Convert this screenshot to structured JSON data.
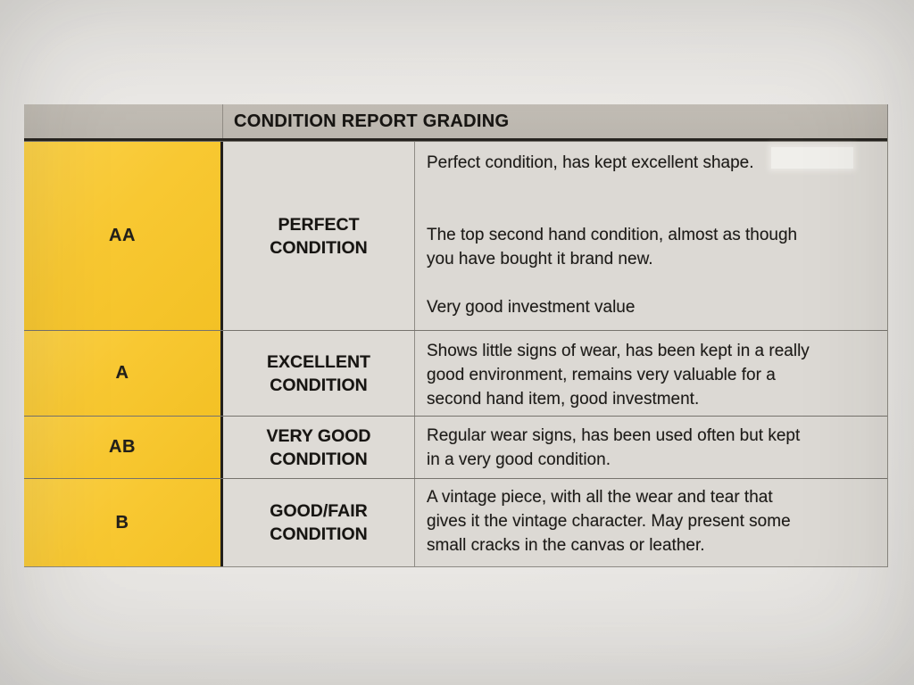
{
  "colors": {
    "paper": "#e8e6e3",
    "header_band": "#bdb8b0",
    "grade_column_yellow": "#f8c832",
    "cell_background": "#dcd9d4",
    "text": "#1d1b18"
  },
  "table": {
    "header": {
      "title": "CONDITION REPORT GRADING"
    },
    "rows": [
      {
        "grade": "AA",
        "condition": [
          "PERFECT",
          "CONDITION"
        ],
        "description": [
          "Perfect condition, has kept excellent shape.",
          "The top second hand condition, almost as though\nyou have bought it brand new.",
          "Very good investment value"
        ]
      },
      {
        "grade": "A",
        "condition": [
          "EXCELLENT",
          "CONDITION"
        ],
        "description": [
          "Shows little signs of wear, has been kept in a really\ngood environment, remains very valuable for a\nsecond hand item, good investment."
        ]
      },
      {
        "grade": "AB",
        "condition": [
          "VERY GOOD",
          "CONDITION"
        ],
        "description": [
          "Regular wear signs, has been used often but kept\nin a very good condition."
        ]
      },
      {
        "grade": "B",
        "condition": [
          "GOOD/FAIR",
          "CONDITION"
        ],
        "description": [
          "A vintage piece, with all the wear and tear that\ngives it the vintage character. May present some\nsmall cracks in the canvas or leather."
        ]
      }
    ]
  }
}
